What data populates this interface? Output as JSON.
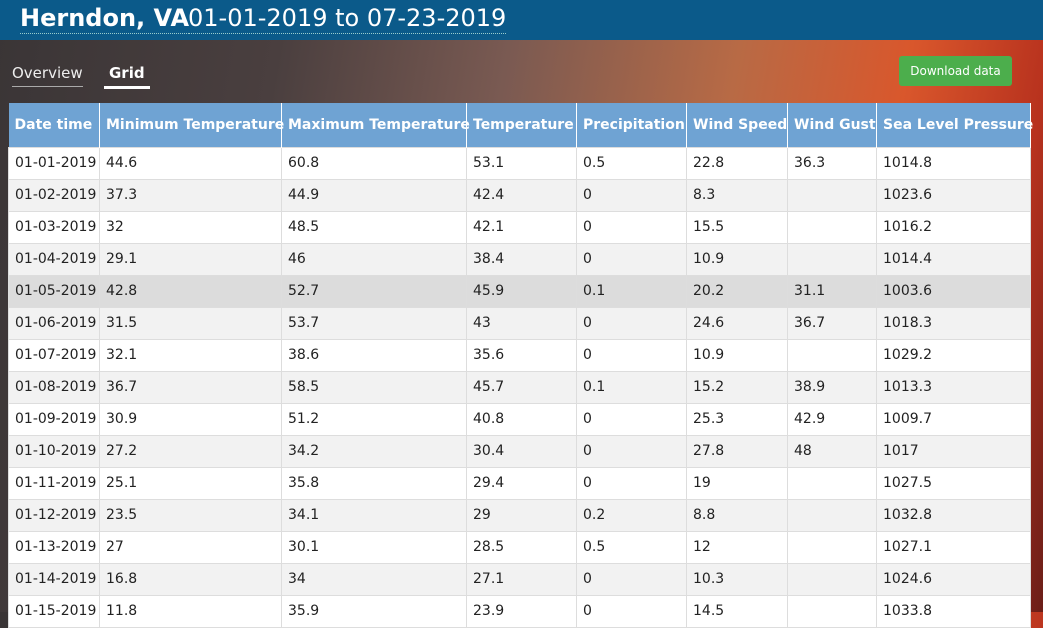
{
  "header": {
    "location": "Herndon, VA",
    "date_range": "01-01-2019 to 07-23-2019"
  },
  "tabs": [
    "Overview",
    "Grid"
  ],
  "download_button": "Download data",
  "table": {
    "columns": [
      "Date time",
      "Minimum Temperature",
      "Maximum Temperature",
      "Temperature",
      "Precipitation",
      "Wind Speed",
      "Wind Gust",
      "Sea Level Pressure"
    ],
    "rows": [
      [
        "01-01-2019",
        44.6,
        60.8,
        53.1,
        0.5,
        22.8,
        36.3,
        1014.8
      ],
      [
        "01-02-2019",
        37.3,
        44.9,
        42.4,
        0,
        8.3,
        null,
        1023.6
      ],
      [
        "01-03-2019",
        32,
        48.5,
        42.1,
        0,
        15.5,
        null,
        1016.2
      ],
      [
        "01-04-2019",
        29.1,
        46,
        38.4,
        0,
        10.9,
        null,
        1014.4
      ],
      [
        "01-05-2019",
        42.8,
        52.7,
        45.9,
        0.1,
        20.2,
        31.1,
        1003.6
      ],
      [
        "01-06-2019",
        31.5,
        53.7,
        43,
        0,
        24.6,
        36.7,
        1018.3
      ],
      [
        "01-07-2019",
        32.1,
        38.6,
        35.6,
        0,
        10.9,
        null,
        1029.2
      ],
      [
        "01-08-2019",
        36.7,
        58.5,
        45.7,
        0.1,
        15.2,
        38.9,
        1013.3
      ],
      [
        "01-09-2019",
        30.9,
        51.2,
        40.8,
        0,
        25.3,
        42.9,
        1009.7
      ],
      [
        "01-10-2019",
        27.2,
        34.2,
        30.4,
        0,
        27.8,
        48,
        1017
      ],
      [
        "01-11-2019",
        25.1,
        35.8,
        29.4,
        0,
        19,
        null,
        1027.5
      ],
      [
        "01-12-2019",
        23.5,
        34.1,
        29,
        0.2,
        8.8,
        null,
        1032.8
      ],
      [
        "01-13-2019",
        27,
        30.1,
        28.5,
        0.5,
        12,
        null,
        1027.1
      ],
      [
        "01-14-2019",
        16.8,
        34,
        27.1,
        0,
        10.3,
        null,
        1024.6
      ],
      [
        "01-15-2019",
        11.8,
        35.9,
        23.9,
        0,
        14.5,
        null,
        1033.8
      ]
    ]
  }
}
